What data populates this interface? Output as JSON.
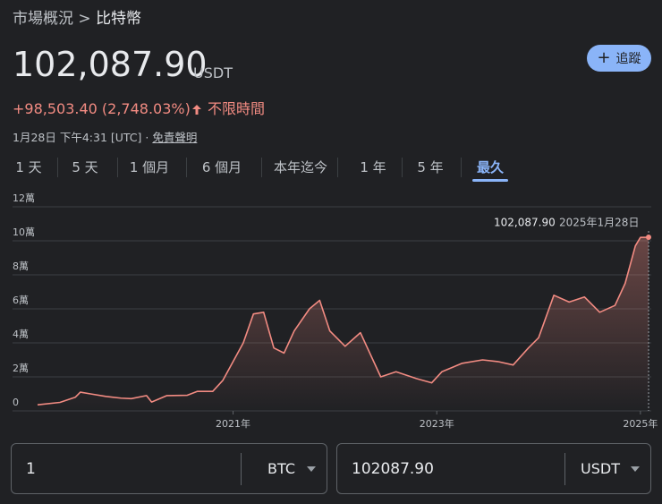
{
  "header": {
    "breadcrumb": "市場概況",
    "separator": ">",
    "current": "比特幣",
    "price": "102,087.90",
    "currency": "USDT",
    "change": "+98,503.40 (2,748.03%)",
    "period": "不限時間",
    "timestamp": "1月28日 下午4:31 [UTC] ·",
    "disclaimer": "免責聲明",
    "follow_button": "追蹤"
  },
  "tabs": [
    "1 天",
    "5 天",
    "1 個月",
    "6 個月",
    "本年迄今",
    "1 年",
    "5 年",
    "最久"
  ],
  "tooltip": {
    "price": "102,087.90",
    "date": "2025年1月28日"
  },
  "converter": {
    "from_amount": "1",
    "from_currency": "BTC",
    "to_amount": "102087.90",
    "to_currency": "USDT"
  },
  "chart_data": {
    "type": "line",
    "color": "#f28b82",
    "grid": true,
    "x": [
      2019.08,
      2019.3,
      2019.45,
      2019.5,
      2019.6,
      2019.75,
      2019.9,
      2020.0,
      2020.15,
      2020.2,
      2020.35,
      2020.55,
      2020.65,
      2020.8,
      2020.9,
      2021.0,
      2021.1,
      2021.2,
      2021.3,
      2021.4,
      2021.5,
      2021.6,
      2021.75,
      2021.85,
      2021.95,
      2022.1,
      2022.25,
      2022.45,
      2022.6,
      2022.8,
      2022.95,
      2023.05,
      2023.25,
      2023.45,
      2023.6,
      2023.75,
      2023.9,
      2024.0,
      2024.15,
      2024.3,
      2024.45,
      2024.6,
      2024.75,
      2024.85,
      2024.95,
      2025.0,
      2025.08
    ],
    "values": [
      3600,
      5000,
      8000,
      11000,
      10000,
      8500,
      7500,
      7200,
      9000,
      5200,
      9000,
      9200,
      11500,
      11500,
      18000,
      29000,
      40000,
      57000,
      58000,
      37000,
      34000,
      47000,
      60000,
      65000,
      47000,
      38000,
      46000,
      20000,
      23000,
      19000,
      16500,
      23000,
      28000,
      30000,
      29000,
      27000,
      37000,
      43000,
      68000,
      64000,
      67000,
      58000,
      62000,
      75000,
      97000,
      102000,
      102087.9
    ],
    "xlim": [
      2019.08,
      2025.08
    ],
    "xticks": [
      {
        "value": 2021,
        "label": "2021年"
      },
      {
        "value": 2023,
        "label": "2023年"
      },
      {
        "value": 2025,
        "label": "2025年"
      }
    ],
    "ylim": [
      0,
      120000
    ],
    "yticks": [
      0,
      {
        "value": 20000,
        "label": "2萬"
      },
      {
        "value": 40000,
        "label": "4萬"
      },
      {
        "value": 60000,
        "label": "6萬"
      },
      {
        "value": 80000,
        "label": "8萬"
      },
      {
        "value": 100000,
        "label": "10萬"
      },
      {
        "value": 120000,
        "label": "12萬"
      }
    ]
  }
}
